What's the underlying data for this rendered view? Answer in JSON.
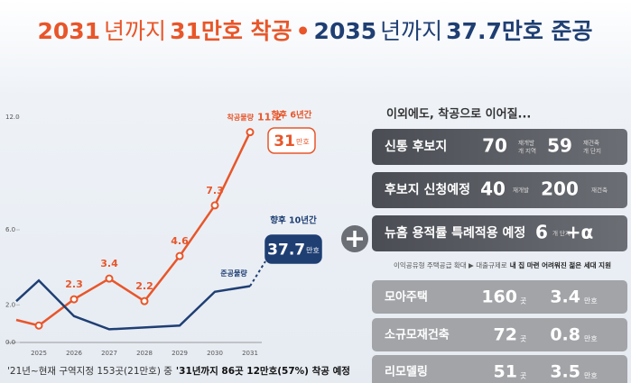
{
  "title": {
    "parts": [
      {
        "text": "2031",
        "color": "#e8562a",
        "weight": "bold"
      },
      {
        "text": "년까지",
        "color": "#e8562a",
        "weight": "normal"
      },
      {
        "text": "31만호 착공",
        "color": "#e8562a",
        "weight": "bold"
      },
      {
        "text": "•",
        "color": "#e8562a",
        "weight": "bold"
      },
      {
        "text": "2035",
        "color": "#1f3f73",
        "weight": "bold"
      },
      {
        "text": "년까지",
        "color": "#1f3f73",
        "weight": "normal"
      },
      {
        "text": "37.7만호 준공",
        "color": "#1f3f73",
        "weight": "bold"
      }
    ]
  },
  "chart_data": {
    "type": "line",
    "categories": [
      null,
      "2025",
      "2026",
      "2027",
      "2028",
      "2029",
      "2030",
      "2031"
    ],
    "series": [
      {
        "name": "착공물량",
        "color": "#e8562a",
        "values": [
          1.2,
          0.9,
          2.3,
          3.4,
          2.2,
          4.6,
          7.3,
          11.2
        ]
      },
      {
        "name": "준공물량",
        "color": "#1f3f73",
        "values": [
          2.2,
          3.3,
          1.4,
          0.7,
          0.8,
          0.9,
          2.7,
          3.0
        ]
      }
    ],
    "ylim": [
      0,
      12
    ],
    "yticks": [
      {
        "value": 0,
        "label": "0.0"
      },
      {
        "value": 2,
        "label": "2.0"
      },
      {
        "value": 6,
        "label": "6.0"
      },
      {
        "value": 12,
        "label": "12.0"
      }
    ],
    "annotations": [
      {
        "period": "향후 6년간",
        "amount": "31",
        "unit": "만호"
      },
      {
        "period": "향후 10년간",
        "amount": "37.7",
        "unit": "만호"
      }
    ]
  },
  "panel": {
    "header": "이외에도, 착공으로 이어질...",
    "highlights": [
      {
        "label": "신통 후보지",
        "items": [
          {
            "value": 70,
            "note": [
              "재개발",
              "개 지역"
            ]
          },
          {
            "value": 59,
            "note": [
              "재건축",
              "개 단지"
            ]
          }
        ]
      },
      {
        "label": "후보지 신청예정",
        "items": [
          {
            "value": 40,
            "note": [
              "재개발"
            ]
          },
          {
            "value": 200,
            "note": [
              "재건축"
            ]
          }
        ]
      },
      {
        "label": "뉴홈 용적률 특례적용 예정",
        "items": [
          {
            "value": 6,
            "note": [
              "개 단지"
            ]
          },
          {
            "value": "+α"
          }
        ]
      }
    ],
    "note": {
      "lead": "이익공유형 주택공급 확대 ▶ 대출규제로",
      "emphasis": "내 집 마련 어려워진 젊은 세대 지원"
    },
    "programs": [
      {
        "label": "모아주택",
        "count": 160,
        "count_unit": "곳",
        "homes": 3.4,
        "homes_unit": "만호"
      },
      {
        "label": "소규모재건축",
        "count": 72,
        "count_unit": "곳",
        "homes": 0.8,
        "homes_unit": "만호"
      },
      {
        "label": "리모델링",
        "count": 51,
        "count_unit": "곳",
        "homes": 3.5,
        "homes_unit": "만호"
      }
    ]
  },
  "footnote": {
    "lead": "'21년~현재 구역지정 153곳(21만호) 중",
    "emphasis": "'31년까지 86곳 12만호(57%) 착공 예정"
  }
}
